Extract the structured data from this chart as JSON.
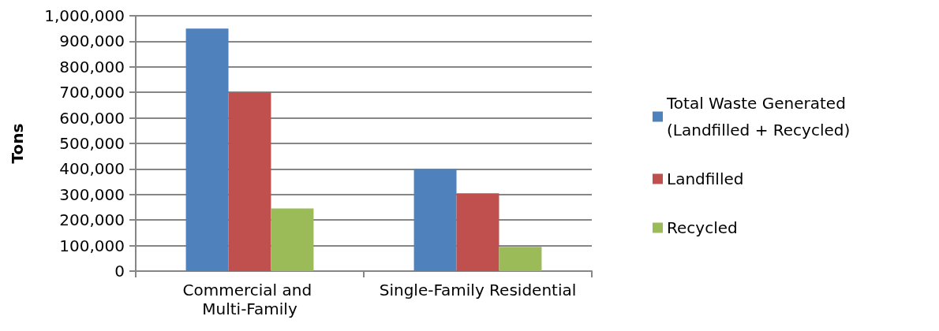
{
  "chart_data": {
    "type": "bar",
    "ylabel": "Tons",
    "categories": [
      "Commercial and Multi-Family",
      "Single-Family Residential"
    ],
    "series": [
      {
        "name": "Total Waste Generated (Landfilled + Recycled)",
        "color": "#4f81bd",
        "values": [
          950000,
          400000
        ]
      },
      {
        "name": "Landfilled",
        "color": "#c0504d",
        "values": [
          700000,
          305000
        ]
      },
      {
        "name": "Recycled",
        "color": "#9bbb59",
        "values": [
          245000,
          95000
        ]
      }
    ],
    "ylim": [
      0,
      1000000
    ],
    "yticks": [
      0,
      {
        "value": 100000,
        "label": "100,000"
      },
      {
        "value": 200000,
        "label": "200,000"
      },
      {
        "value": 300000,
        "label": "300,000"
      },
      {
        "value": 400000,
        "label": "400,000"
      },
      {
        "value": 500000,
        "label": "500,000"
      },
      {
        "value": 600000,
        "label": "600,000"
      },
      {
        "value": 700000,
        "label": "700,000"
      },
      {
        "value": 800000,
        "label": "800,000"
      },
      {
        "value": 900000,
        "label": "900,000"
      },
      {
        "value": 1000000,
        "label": "1,000,000"
      }
    ],
    "grid": "y",
    "legend": "right"
  }
}
